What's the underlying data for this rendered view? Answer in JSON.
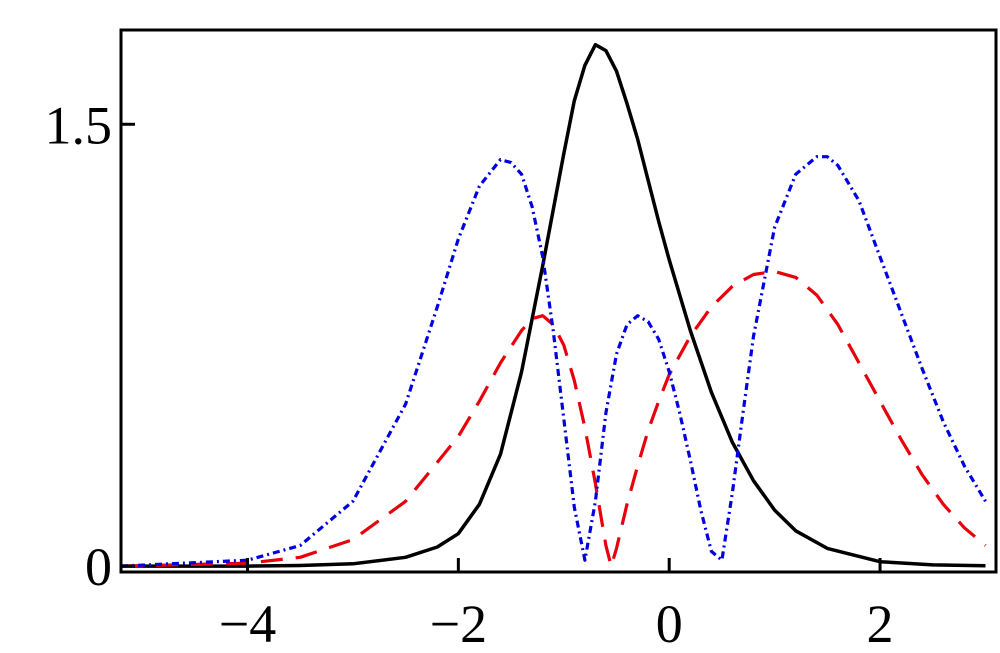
{
  "chart_data": {
    "type": "line",
    "title": "",
    "xlabel": "",
    "ylabel": "",
    "xlim": [
      -5.2,
      3.1
    ],
    "ylim": [
      -0.02,
      1.82
    ],
    "x_ticks": [
      {
        "value": -4,
        "label": "−4"
      },
      {
        "value": -2,
        "label": "−2"
      },
      {
        "value": 0,
        "label": "0"
      },
      {
        "value": 2,
        "label": "2"
      }
    ],
    "y_ticks": [
      {
        "value": 0,
        "label": "0"
      },
      {
        "value": 1.5,
        "label": "1.5"
      }
    ],
    "grid": false,
    "legend": "none",
    "series": [
      {
        "style": "solid",
        "color": "#000000",
        "x": [
          -5.2,
          -4.0,
          -3.5,
          -3.0,
          -2.5,
          -2.2,
          -2.0,
          -1.8,
          -1.6,
          -1.4,
          -1.2,
          -1.0,
          -0.9,
          -0.8,
          -0.7,
          -0.6,
          -0.5,
          -0.4,
          -0.3,
          -0.2,
          -0.1,
          0.0,
          0.2,
          0.4,
          0.6,
          0.8,
          1.0,
          1.2,
          1.5,
          2.0,
          2.5,
          3.0
        ],
        "y": [
          0.0,
          0.0,
          0.002,
          0.008,
          0.03,
          0.065,
          0.11,
          0.21,
          0.38,
          0.66,
          1.02,
          1.4,
          1.58,
          1.7,
          1.77,
          1.75,
          1.68,
          1.57,
          1.45,
          1.31,
          1.17,
          1.04,
          0.8,
          0.59,
          0.42,
          0.29,
          0.19,
          0.12,
          0.06,
          0.015,
          0.004,
          0.001
        ]
      },
      {
        "style": "dashed",
        "color": "#e8000b",
        "x": [
          -5.2,
          -4.0,
          -3.5,
          -3.0,
          -2.5,
          -2.0,
          -1.8,
          -1.6,
          -1.4,
          -1.3,
          -1.2,
          -1.1,
          -1.0,
          -0.9,
          -0.8,
          -0.7,
          -0.6,
          -0.55,
          -0.5,
          -0.4,
          -0.3,
          -0.2,
          -0.1,
          0.0,
          0.2,
          0.4,
          0.6,
          0.8,
          1.0,
          1.2,
          1.4,
          1.6,
          1.8,
          2.0,
          2.2,
          2.4,
          2.6,
          2.8,
          3.0
        ],
        "y": [
          0.0,
          0.01,
          0.03,
          0.09,
          0.22,
          0.44,
          0.56,
          0.69,
          0.8,
          0.84,
          0.85,
          0.82,
          0.75,
          0.63,
          0.47,
          0.28,
          0.07,
          0.0,
          0.06,
          0.21,
          0.34,
          0.46,
          0.56,
          0.65,
          0.78,
          0.88,
          0.95,
          0.99,
          1.0,
          0.98,
          0.92,
          0.82,
          0.69,
          0.56,
          0.43,
          0.31,
          0.21,
          0.13,
          0.07
        ]
      },
      {
        "style": "dot-dash",
        "color": "#0000e0",
        "x": [
          -5.2,
          -4.0,
          -3.5,
          -3.0,
          -2.5,
          -2.2,
          -2.0,
          -1.8,
          -1.6,
          -1.5,
          -1.4,
          -1.3,
          -1.2,
          -1.1,
          -1.0,
          -0.9,
          -0.8,
          -0.7,
          -0.6,
          -0.5,
          -0.4,
          -0.3,
          -0.2,
          -0.1,
          0.0,
          0.1,
          0.2,
          0.3,
          0.4,
          0.5,
          0.6,
          0.7,
          0.8,
          1.0,
          1.2,
          1.4,
          1.5,
          1.6,
          1.8,
          2.0,
          2.2,
          2.4,
          2.6,
          2.8,
          3.0
        ],
        "y": [
          0.0,
          0.02,
          0.07,
          0.22,
          0.55,
          0.88,
          1.11,
          1.29,
          1.38,
          1.37,
          1.33,
          1.22,
          1.05,
          0.8,
          0.5,
          0.2,
          0.02,
          0.22,
          0.52,
          0.72,
          0.82,
          0.85,
          0.83,
          0.77,
          0.66,
          0.52,
          0.36,
          0.19,
          0.05,
          0.02,
          0.25,
          0.52,
          0.78,
          1.15,
          1.33,
          1.39,
          1.39,
          1.36,
          1.24,
          1.05,
          0.86,
          0.67,
          0.49,
          0.34,
          0.22
        ]
      }
    ]
  }
}
